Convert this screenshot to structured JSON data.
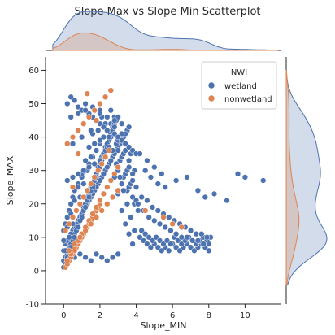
{
  "chart_data": {
    "type": "scatter",
    "title": "Slope Max vs Slope Min Scatterplot",
    "xlabel": "Slope_MIN",
    "ylabel": "Slope_MAX",
    "xlim": [
      -1,
      12
    ],
    "ylim": [
      -10,
      64
    ],
    "xticks": [
      0,
      2,
      4,
      6,
      8,
      10
    ],
    "yticks": [
      -10,
      0,
      10,
      20,
      30,
      40,
      50,
      60
    ],
    "grid": false,
    "legend": {
      "title": "NWI",
      "placement": "top-right"
    },
    "marginals": {
      "top": "kde",
      "right": "kde"
    },
    "series": [
      {
        "name": "wetland",
        "color": "#4c72b0",
        "x": [
          0.0,
          0.1,
          0.2,
          0.3,
          0.4,
          0.5,
          0.6,
          0.8,
          1.0,
          1.2,
          1.4,
          1.6,
          1.8,
          2.0,
          2.2,
          2.4,
          2.6,
          2.8,
          3.0,
          3.2,
          0.1,
          0.3,
          0.5,
          0.7,
          0.9,
          1.1,
          1.3,
          1.5,
          1.7,
          1.9,
          2.1,
          2.3,
          2.5,
          2.7,
          2.9,
          3.1,
          3.3,
          3.5,
          3.7,
          3.9,
          0.0,
          0.2,
          0.4,
          0.6,
          0.8,
          1.0,
          1.2,
          1.4,
          1.6,
          1.8,
          2.0,
          2.2,
          2.4,
          2.6,
          2.8,
          3.0,
          3.2,
          3.4,
          3.6,
          3.8,
          0.1,
          0.3,
          0.5,
          0.7,
          0.9,
          1.1,
          1.3,
          1.5,
          1.7,
          1.9,
          2.1,
          2.3,
          2.5,
          2.7,
          2.9,
          3.1,
          3.3,
          3.5,
          3.8,
          4.1,
          0.0,
          0.2,
          0.4,
          0.6,
          0.8,
          1.0,
          1.2,
          1.4,
          1.6,
          1.8,
          2.0,
          2.2,
          2.4,
          2.6,
          2.8,
          3.0,
          3.2,
          3.4,
          3.6,
          3.9,
          0.1,
          0.3,
          0.5,
          0.7,
          0.9,
          1.1,
          1.3,
          1.5,
          1.7,
          1.9,
          2.1,
          2.3,
          2.5,
          2.7,
          2.9,
          3.1,
          3.3,
          3.5,
          3.7,
          4.0,
          0.0,
          0.2,
          0.4,
          0.6,
          0.8,
          1.0,
          1.2,
          1.4,
          1.6,
          1.8,
          2.0,
          2.2,
          2.4,
          2.6,
          2.8,
          3.0,
          3.2,
          3.4,
          3.6,
          3.8,
          0.1,
          0.3,
          0.5,
          0.7,
          0.9,
          1.1,
          1.3,
          1.5,
          1.7,
          1.9,
          2.1,
          2.3,
          2.5,
          2.7,
          2.9,
          3.1,
          3.3,
          3.5,
          3.7,
          3.9,
          0.0,
          0.2,
          0.4,
          0.6,
          0.8,
          1.0,
          1.2,
          1.4,
          1.6,
          1.8,
          2.0,
          2.2,
          2.4,
          2.6,
          2.8,
          3.0,
          3.2,
          3.4,
          3.6,
          3.8,
          0.2,
          0.4,
          0.6,
          0.8,
          1.0,
          1.2,
          1.4,
          1.6,
          1.8,
          2.0,
          2.2,
          2.4,
          2.6,
          2.8,
          3.0,
          3.2,
          3.4,
          3.6,
          3.8,
          4.0,
          4.2,
          4.4,
          4.6,
          4.8,
          5.0,
          5.2,
          5.4,
          5.6,
          5.8,
          6.0,
          6.2,
          6.4,
          6.6,
          6.8,
          7.0,
          7.2,
          7.4,
          7.6,
          7.8,
          8.0,
          4.3,
          4.5,
          4.7,
          4.9,
          5.1,
          5.3,
          5.5,
          5.7,
          5.9,
          6.1,
          6.3,
          6.5,
          6.7,
          6.9,
          7.1,
          7.3,
          7.5,
          7.7,
          7.9,
          8.1,
          4.1,
          4.4,
          4.7,
          5.0,
          5.3,
          5.6,
          5.9,
          6.2,
          6.5,
          6.8,
          7.1,
          7.4,
          7.7,
          8.0,
          4.0,
          4.3,
          4.6,
          4.9,
          5.2,
          5.5,
          5.8,
          6.1,
          6.4,
          6.7,
          7.0,
          7.3,
          7.6,
          7.9,
          0.3,
          0.6,
          0.9,
          1.2,
          1.5,
          1.8,
          2.1,
          2.4,
          2.7,
          3.0,
          0.4,
          0.8,
          1.2,
          1.6,
          2.0,
          2.4,
          2.8,
          3.2,
          3.6,
          0.2,
          0.5,
          0.8,
          1.1,
          1.4,
          1.7,
          2.0,
          2.3,
          0.5,
          1.0,
          1.5,
          2.0,
          2.5,
          3.0,
          4.5,
          4.8,
          5.2,
          5.6,
          6.2,
          6.8,
          7.4,
          7.8,
          8.3,
          9.0,
          9.6,
          10.0,
          11.0,
          4.2,
          4.6,
          5.0,
          5.4
        ],
        "y": [
          12,
          14,
          16,
          18,
          20,
          22,
          24,
          26,
          28,
          30,
          32,
          34,
          36,
          38,
          40,
          42,
          44,
          46,
          30,
          26,
          8,
          10,
          12,
          14,
          16,
          18,
          20,
          22,
          24,
          26,
          28,
          30,
          32,
          34,
          36,
          38,
          40,
          42,
          35,
          30,
          6,
          9,
          11,
          13,
          15,
          17,
          19,
          21,
          23,
          25,
          27,
          29,
          31,
          33,
          35,
          37,
          39,
          41,
          33,
          29,
          4,
          7,
          10,
          13,
          16,
          19,
          22,
          25,
          28,
          31,
          34,
          37,
          40,
          43,
          38,
          33,
          28,
          24,
          22,
          18,
          3,
          5,
          8,
          11,
          14,
          17,
          20,
          23,
          26,
          29,
          32,
          35,
          38,
          41,
          44,
          39,
          34,
          29,
          25,
          20,
          2,
          5,
          9,
          12,
          15,
          18,
          21,
          24,
          27,
          30,
          33,
          36,
          39,
          42,
          45,
          40,
          35,
          30,
          26,
          21,
          1,
          4,
          7,
          10,
          13,
          16,
          19,
          22,
          25,
          28,
          31,
          34,
          37,
          40,
          43,
          46,
          41,
          36,
          31,
          27,
          6,
          10,
          14,
          18,
          22,
          26,
          30,
          34,
          38,
          42,
          46,
          44,
          40,
          36,
          32,
          28,
          24,
          20,
          16,
          12,
          9,
          13,
          17,
          21,
          25,
          29,
          33,
          37,
          41,
          45,
          48,
          43,
          38,
          33,
          28,
          23,
          18,
          14,
          11,
          8,
          50,
          52,
          51,
          49,
          48,
          50,
          47,
          46,
          45,
          44,
          43,
          42,
          48,
          41,
          40,
          39,
          38,
          37,
          36,
          35,
          10,
          9,
          8,
          7,
          8,
          7,
          6,
          7,
          6,
          8,
          7,
          6,
          7,
          8,
          7,
          6,
          7,
          8,
          7,
          6,
          12,
          11,
          10,
          9,
          10,
          9,
          8,
          9,
          8,
          10,
          9,
          8,
          9,
          10,
          9,
          8,
          9,
          10,
          9,
          10,
          20,
          18,
          16,
          15,
          14,
          13,
          12,
          11,
          10,
          10,
          9,
          9,
          8,
          8,
          25,
          22,
          21,
          19,
          18,
          17,
          16,
          15,
          14,
          13,
          12,
          11,
          11,
          10,
          3,
          4,
          5,
          4,
          3,
          5,
          4,
          3,
          4,
          5,
          46,
          47,
          48,
          49,
          47,
          46,
          45,
          44,
          43,
          27,
          28,
          29,
          30,
          31,
          32,
          33,
          34,
          38,
          40,
          42,
          39,
          37,
          36,
          30,
          28,
          26,
          25,
          27,
          28,
          24,
          22,
          23,
          21,
          29,
          28,
          27,
          35,
          33,
          31,
          29
        ]
      },
      {
        "name": "nonwetland",
        "color": "#dd8452",
        "x": [
          0.1,
          0.2,
          0.3,
          0.4,
          0.5,
          0.6,
          0.7,
          0.8,
          0.9,
          1.0,
          1.1,
          1.2,
          1.3,
          1.4,
          1.5,
          1.6,
          1.7,
          1.8,
          1.9,
          2.0,
          0.2,
          0.4,
          0.6,
          0.8,
          1.0,
          1.2,
          1.4,
          1.6,
          1.8,
          2.0,
          2.2,
          2.4,
          2.6,
          2.8,
          3.0,
          0.1,
          0.3,
          0.5,
          0.7,
          0.9,
          1.1,
          1.3,
          1.5,
          1.7,
          1.9,
          2.1,
          2.3,
          2.5,
          0.3,
          0.6,
          0.9,
          1.2,
          1.5,
          1.8,
          2.1,
          2.4,
          2.7,
          3.0,
          0.2,
          0.5,
          0.8,
          1.1,
          1.4,
          1.7,
          2.0,
          2.3,
          1.3,
          2.6,
          1.8,
          0.8,
          0.5,
          4.5,
          5.5,
          6.0,
          6.5
        ],
        "y": [
          1,
          2,
          3,
          4,
          5,
          6,
          7,
          8,
          9,
          10,
          11,
          12,
          13,
          14,
          15,
          16,
          17,
          18,
          19,
          20,
          3,
          5,
          7,
          9,
          11,
          13,
          15,
          17,
          19,
          21,
          23,
          25,
          27,
          29,
          31,
          12,
          14,
          16,
          18,
          20,
          22,
          24,
          26,
          28,
          30,
          32,
          34,
          36,
          6,
          8,
          10,
          12,
          14,
          16,
          18,
          20,
          22,
          24,
          38,
          40,
          42,
          44,
          46,
          48,
          50,
          52,
          53,
          54,
          45,
          35,
          25,
          18,
          16,
          14,
          13
        ]
      }
    ]
  }
}
